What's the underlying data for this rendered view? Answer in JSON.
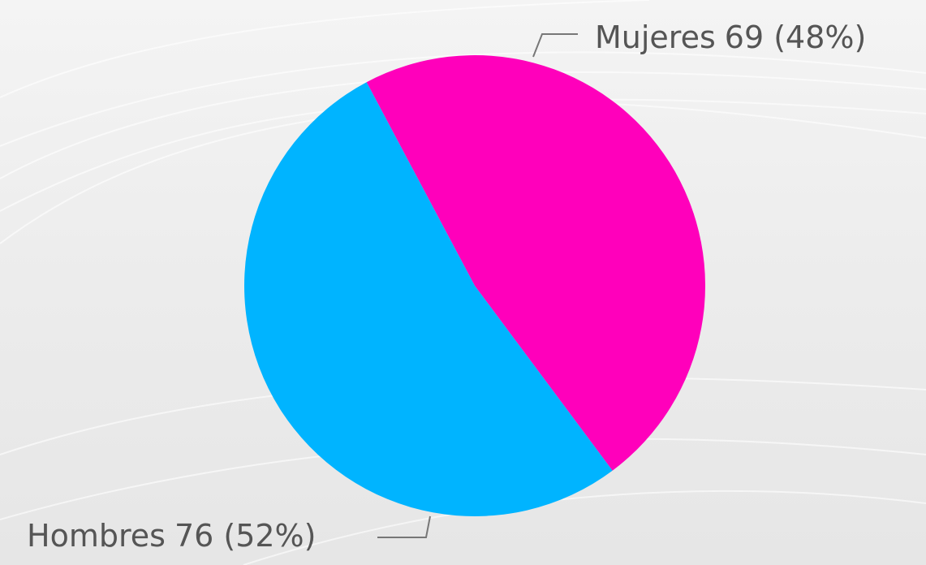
{
  "chart_data": {
    "type": "pie",
    "categories": [
      "Mujeres",
      "Hombres"
    ],
    "values": [
      69,
      76
    ],
    "value_labels": [
      "69 (48%)",
      "76 (52%)"
    ],
    "colors": [
      "#ff00bb",
      "#00b4ff"
    ]
  }
}
